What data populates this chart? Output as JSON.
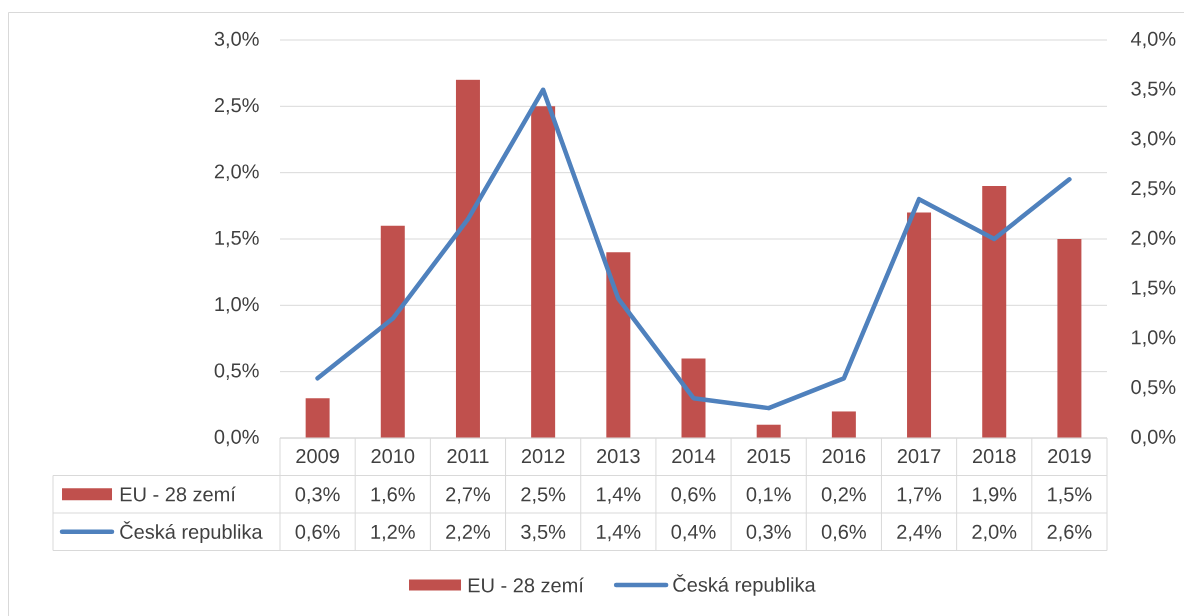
{
  "chart_data": {
    "type": "bar",
    "categories": [
      "2009",
      "2010",
      "2011",
      "2012",
      "2013",
      "2014",
      "2015",
      "2016",
      "2017",
      "2018",
      "2019"
    ],
    "series": [
      {
        "name": "EU - 28 zemí",
        "color": "#c0504d",
        "values": [
          0.3,
          1.6,
          2.7,
          2.5,
          1.4,
          0.6,
          0.1,
          0.2,
          1.7,
          1.9,
          1.5
        ],
        "value_labels": [
          "0,3%",
          "1,6%",
          "2,7%",
          "2,5%",
          "1,4%",
          "0,6%",
          "0,1%",
          "0,2%",
          "1,7%",
          "1,9%",
          "1,5%"
        ]
      },
      {
        "name": "Česká republika",
        "type": "line",
        "axis": "y2",
        "color": "#4f81bd",
        "values": [
          0.6,
          1.2,
          2.2,
          3.5,
          1.4,
          0.4,
          0.3,
          0.6,
          2.4,
          2.0,
          2.6
        ],
        "value_labels": [
          "0,6%",
          "1,2%",
          "2,2%",
          "3,5%",
          "1,4%",
          "0,4%",
          "0,3%",
          "0,6%",
          "2,4%",
          "2,0%",
          "2,6%"
        ]
      }
    ],
    "ylim": [
      0,
      3.0
    ],
    "yticks": [
      {
        "value": 0,
        "label": "0,0%"
      },
      {
        "value": 0.5,
        "label": "0,5%"
      },
      {
        "value": 1.0,
        "label": "1,0%"
      },
      {
        "value": 1.5,
        "label": "1,5%"
      },
      {
        "value": 2.0,
        "label": "2,0%"
      },
      {
        "value": 2.5,
        "label": "2,5%"
      },
      {
        "value": 3.0,
        "label": "3,0%"
      }
    ],
    "y2lim": [
      0,
      4.0
    ],
    "y2ticks": [
      {
        "value": 0,
        "label": "0,0%"
      },
      {
        "value": 0.5,
        "label": "0,5%"
      },
      {
        "value": 1.0,
        "label": "1,0%"
      },
      {
        "value": 1.5,
        "label": "1,5%"
      },
      {
        "value": 2.0,
        "label": "2,0%"
      },
      {
        "value": 2.5,
        "label": "2,5%"
      },
      {
        "value": 3.0,
        "label": "3,0%"
      },
      {
        "value": 3.5,
        "label": "3,5%"
      },
      {
        "value": 4.0,
        "label": "4,0%"
      }
    ],
    "grid": "y",
    "legend": "bottom"
  }
}
